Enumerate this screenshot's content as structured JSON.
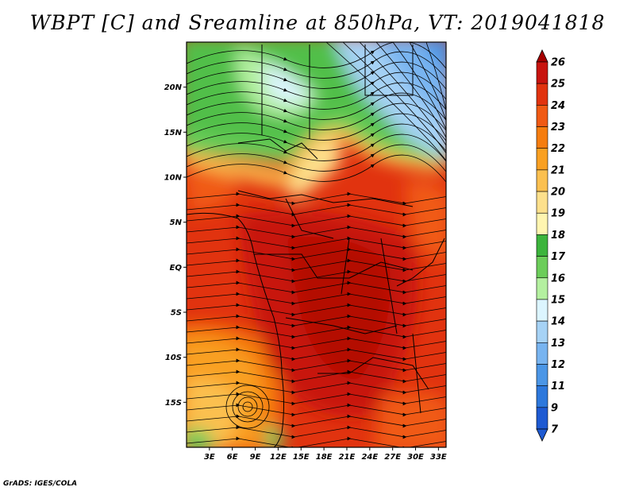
{
  "title": "WBPT [C] and Sreamline at 850hPa, VT: 2019041818",
  "credit": "GrADS: IGES/COLA",
  "lat_ticks": [
    {
      "label": "20N",
      "value": 20
    },
    {
      "label": "15N",
      "value": 15
    },
    {
      "label": "10N",
      "value": 10
    },
    {
      "label": "5N",
      "value": 5
    },
    {
      "label": "EQ",
      "value": 0
    },
    {
      "label": "5S",
      "value": -5
    },
    {
      "label": "10S",
      "value": -10
    },
    {
      "label": "15S",
      "value": -15
    }
  ],
  "lon_ticks": [
    {
      "label": "3E",
      "value": 3
    },
    {
      "label": "6E",
      "value": 6
    },
    {
      "label": "9E",
      "value": 9
    },
    {
      "label": "12E",
      "value": 12
    },
    {
      "label": "15E",
      "value": 15
    },
    {
      "label": "18E",
      "value": 18
    },
    {
      "label": "21E",
      "value": 21
    },
    {
      "label": "24E",
      "value": 24
    },
    {
      "label": "27E",
      "value": 27
    },
    {
      "label": "30E",
      "value": 30
    },
    {
      "label": "33E",
      "value": 33
    }
  ],
  "map_extent": {
    "lon_min": 0,
    "lon_max": 34,
    "lat_min": -20,
    "lat_max": 25
  },
  "colorbar": {
    "levels": [
      "26",
      "25",
      "24",
      "23",
      "22",
      "21",
      "20",
      "19",
      "18",
      "17",
      "16",
      "15",
      "14",
      "13",
      "12",
      "11",
      "9",
      "7"
    ],
    "colors": [
      "#a50000",
      "#c8140f",
      "#e1330f",
      "#f05a14",
      "#f57d0f",
      "#f9a022",
      "#fbc050",
      "#fde08c",
      "#fff5b0",
      "#3cb43c",
      "#6ccd5a",
      "#b4f0a0",
      "#dcf5ff",
      "#a6d2f5",
      "#78b4f0",
      "#4b96e6",
      "#2d78dc",
      "#1e5ad2"
    ]
  },
  "regions": [
    {
      "name": "northwest-green-zone",
      "wbpt": 16
    },
    {
      "name": "northeast-cool-zone",
      "wbpt": 13
    },
    {
      "name": "equatorial-hot-core",
      "wbpt": 25
    },
    {
      "name": "southwest-coastal-zone",
      "wbpt": 21
    }
  ]
}
